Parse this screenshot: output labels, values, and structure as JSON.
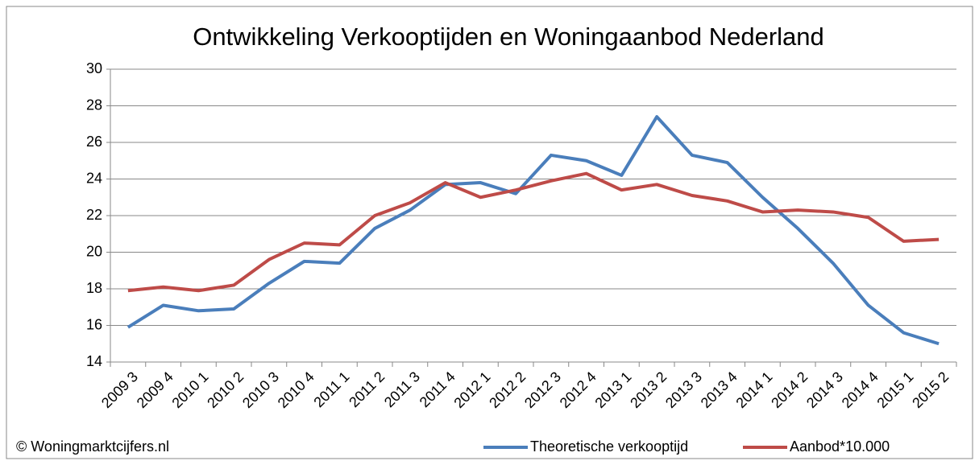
{
  "chart_data": {
    "type": "line",
    "title": "Ontwikkeling  Verkooptijden en Woningaanbod Nederland",
    "source": "© Woningmarktcijfers.nl",
    "categories": [
      "2009 3",
      "2009 4",
      "2010 1",
      "2010 2",
      "2010 3",
      "2010 4",
      "2011 1",
      "2011 2",
      "2011 3",
      "2011 4",
      "2012 1",
      "2012 2",
      "2012 3",
      "2012 4",
      "2013 1",
      "2013 2",
      "2013 3",
      "2013 4",
      "2014 1",
      "2014 2",
      "2014 3",
      "2014 4",
      "2015 1",
      "2015 2"
    ],
    "series": [
      {
        "name": "Theoretische verkooptijd",
        "color": "#4a7ebb",
        "values": [
          15.9,
          17.1,
          16.8,
          16.9,
          18.3,
          19.5,
          19.4,
          21.3,
          22.3,
          23.7,
          23.8,
          23.2,
          25.3,
          25.0,
          24.2,
          27.4,
          25.3,
          24.9,
          23.0,
          21.3,
          19.4,
          17.1,
          15.6,
          15.0
        ]
      },
      {
        "name": "Aanbod*10.000",
        "color": "#be4b48",
        "values": [
          17.9,
          18.1,
          17.9,
          18.2,
          19.6,
          20.5,
          20.4,
          22.0,
          22.7,
          23.8,
          23.0,
          23.4,
          23.9,
          24.3,
          23.4,
          23.7,
          23.1,
          22.8,
          22.2,
          22.3,
          22.2,
          21.9,
          20.6,
          20.7
        ]
      }
    ],
    "ylim": [
      14,
      30
    ],
    "yticks": [
      14,
      16,
      18,
      20,
      22,
      24,
      26,
      28,
      30
    ],
    "grid": true,
    "legend": "bottom-right"
  }
}
